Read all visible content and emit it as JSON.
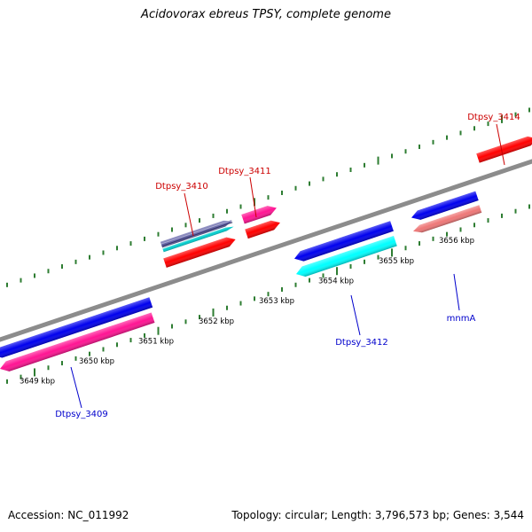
{
  "title": "Acidovorax ebreus TPSY, complete genome",
  "footer": {
    "accession": "Accession: NC_011992",
    "summary": "Topology: circular; Length: 3,796,573 bp; Genes: 3,544"
  },
  "colors": {
    "backbone": "#8c8c8c",
    "tick": "#2e7d32",
    "label_forward": "#cc0000",
    "label_reverse": "#0000cc"
  },
  "ticks": [
    {
      "label": "3649 kbp"
    },
    {
      "label": "3650 kbp"
    },
    {
      "label": "3651 kbp"
    },
    {
      "label": "3652 kbp"
    },
    {
      "label": "3653 kbp"
    },
    {
      "label": "3654 kbp"
    },
    {
      "label": "3655 kbp"
    },
    {
      "label": "3656 kbp"
    }
  ],
  "features": [
    {
      "name": "Dtpsy_3409",
      "strand": "reverse",
      "color": "#ff1493"
    },
    {
      "name": "",
      "strand": "reverse",
      "color": "#0000ee"
    },
    {
      "name": "Dtpsy_3410",
      "strand": "forward",
      "color": "#ff0000"
    },
    {
      "name": "",
      "strand": "forward",
      "color": "#00cccc"
    },
    {
      "name": "",
      "strand": "forward",
      "color": "#6666aa"
    },
    {
      "name": "Dtpsy_3411",
      "strand": "forward",
      "color": "#ff1493"
    },
    {
      "name": "",
      "strand": "forward",
      "color": "#ff0000"
    },
    {
      "name": "Dtpsy_3412",
      "strand": "reverse",
      "color": "#00ffff"
    },
    {
      "name": "",
      "strand": "reverse",
      "color": "#0000ee"
    },
    {
      "name": "mnmA",
      "strand": "reverse",
      "color": "#ee7777"
    },
    {
      "name": "",
      "strand": "reverse",
      "color": "#0000ee"
    },
    {
      "name": "Dtpsy_3414",
      "strand": "forward",
      "color": "#ff0000"
    }
  ]
}
